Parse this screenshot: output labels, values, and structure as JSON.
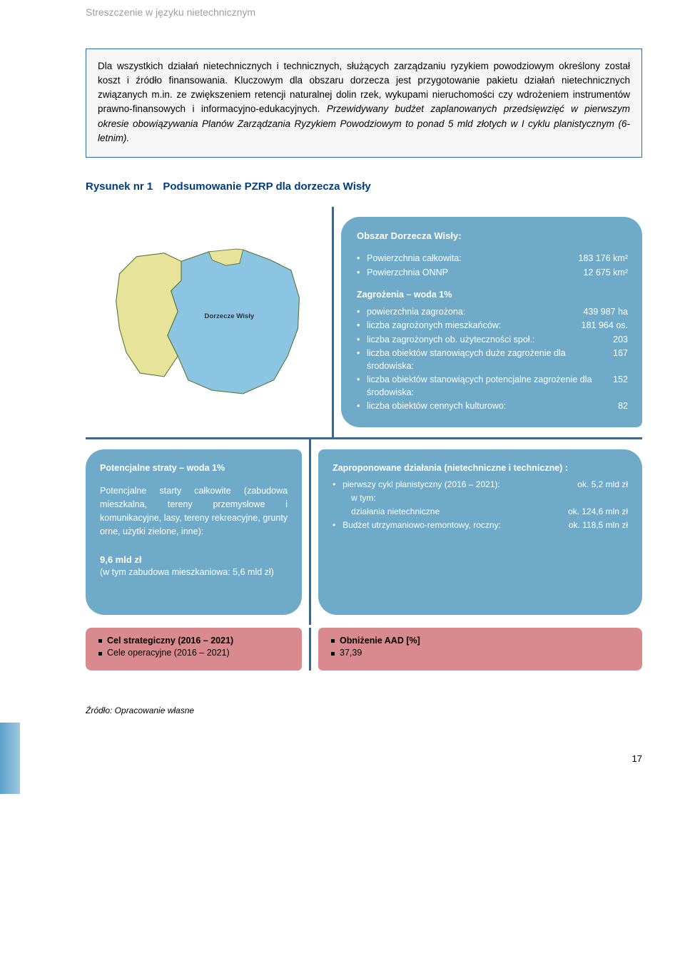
{
  "header": "Streszczenie w języku nietechnicznym",
  "intro_html": "Dla wszystkich działań nietechnicznych i technicznych, służących zarządzaniu ryzykiem powodziowym określony został koszt i źródło finansowania. Kluczowym dla obszaru dorzecza jest przygotowanie pakietu działań nietechnicznych związanych m.in. ze zwiększeniem retencji naturalnej dolin rzek, wykupami nieruchomości czy wdrożeniem instrumentów prawno-finansowych i informacyjno-edukacyjnych. <i>Przewidywany budżet zaplanowanych przedsięwzięć w pierwszym okresie obowiązywania Planów Zarządzania Ryzykiem Powodziowym to ponad 5 mld złotych w I cyklu planistycznym (6-letnim).</i>",
  "figure_num": "Rysunek nr 1",
  "figure_title": "Podsumowanie PZRP dla dorzecza Wisły",
  "map_label": "Dorzecze Wisły",
  "colors": {
    "accent": "#2a6ca8",
    "box_blue": "#6fabc9",
    "box_pink": "#d98a8e",
    "map_basin": "#8cc5e3",
    "map_other": "#e8e39a",
    "map_border": "#5a7a3a"
  },
  "area": {
    "title": "Obszar Dorzecza Wisły:",
    "rows": [
      {
        "label": "Powierzchnia całkowita:",
        "value": "183 176 km²"
      },
      {
        "label": "Powierzchnia ONNP",
        "value": "12 675 km²"
      }
    ]
  },
  "threats": {
    "title": "Zagrożenia – woda 1%",
    "rows": [
      {
        "label": "powierzchnia zagrożona:",
        "value": "439 987 ha"
      },
      {
        "label": "liczba zagrożonych mieszkańców:",
        "value": "181 964 os."
      },
      {
        "label": "liczba zagrożonych ob. użyteczności społ.:",
        "value": "203"
      },
      {
        "label": "liczba obiektów stanowiących duże zagrożenie dla środowiska:",
        "value": "167"
      },
      {
        "label": "liczba obiektów stanowiących potencjalne zagrożenie dla środowiska:",
        "value": "152"
      },
      {
        "label": "liczba obiektów cennych kulturowo:",
        "value": "82"
      }
    ]
  },
  "losses": {
    "title": "Potencjalne straty – woda 1%",
    "body": "Potencjalne starty całkowite (zabudowa mieszkalna, tereny przemysłowe i komunikacyjne, lasy, tereny rekreacyjne, grunty orne, użytki zielone, inne):",
    "big": "9,6 mld  zł",
    "sub": "(w tym zabudowa mieszkaniowa: 5,6 mld  zł)"
  },
  "actions": {
    "title": "Zaproponowane działania  (nietechniczne  i techniczne) :",
    "rows": [
      {
        "label": "pierwszy cykl planistyczny (2016 – 2021):",
        "value": "ok. 5,2 mld zł",
        "bullet": true,
        "indent": 0
      },
      {
        "label": "w tym:",
        "value": "",
        "bullet": false,
        "indent": 1
      },
      {
        "label": "działania nietechniczne",
        "value": "ok. 124,6 mln zł",
        "bullet": false,
        "indent": 1
      },
      {
        "label": "Budżet utrzymaniowo-remontowy, roczny:",
        "value": "ok. 118,5 mln zł",
        "bullet": true,
        "indent": 0
      }
    ]
  },
  "goals": {
    "line1": "Cel strategiczny (2016 – 2021)",
    "line2": "Cele operacyjne (2016 – 2021)"
  },
  "aad": {
    "line1": "Obniżenie AAD [%]",
    "line2": "37,39"
  },
  "source": "Źródło: Opracowanie własne",
  "page_number": "17"
}
